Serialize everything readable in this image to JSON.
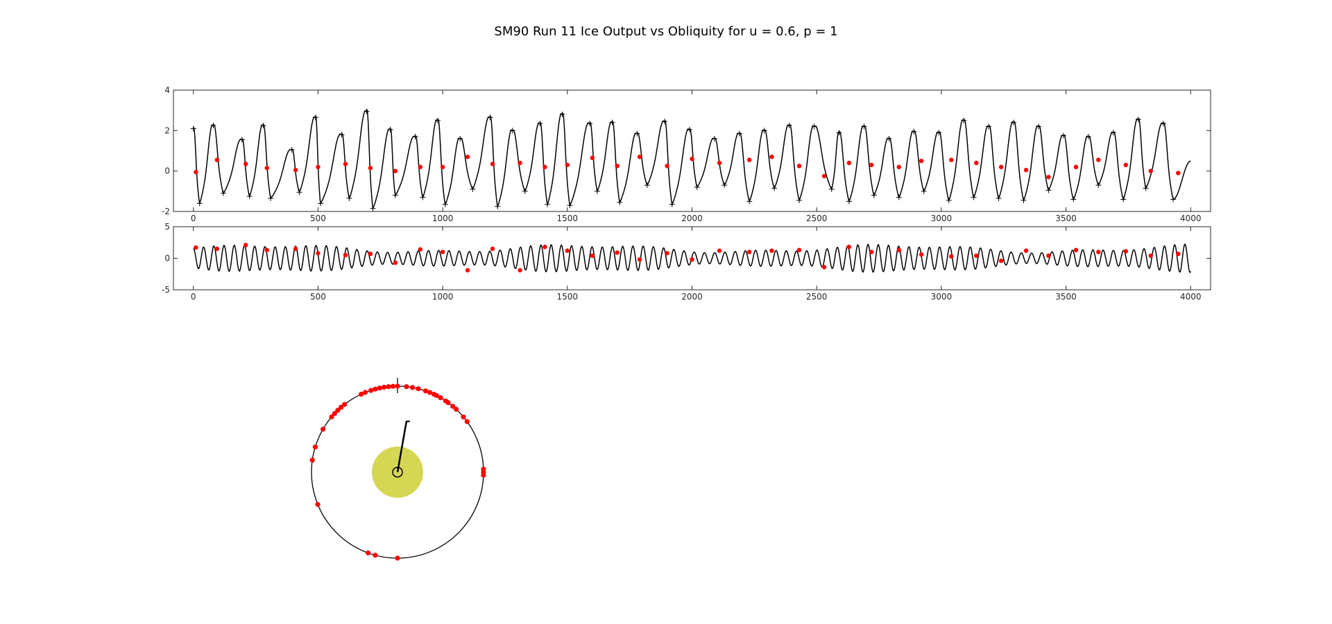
{
  "title": "SM90 Run 11 Ice Output vs Obliquity for u = 0.6, p = 1",
  "chart_data": [
    {
      "type": "line",
      "name": "ice-output",
      "xlim": [
        -80,
        4080
      ],
      "ylim": [
        -2,
        4
      ],
      "xticks": [
        0,
        500,
        1000,
        1500,
        2000,
        2500,
        3000,
        3500,
        4000
      ],
      "yticks": [
        -2,
        0,
        2,
        4
      ],
      "grid": false,
      "series_color": "#000000",
      "marker_color": "#ff0000",
      "markers_red": [
        [
          10,
          -0.05
        ],
        [
          95,
          0.55
        ],
        [
          210,
          0.35
        ],
        [
          295,
          0.15
        ],
        [
          410,
          0.05
        ],
        [
          500,
          0.2
        ],
        [
          610,
          0.35
        ],
        [
          710,
          0.15
        ],
        [
          810,
          0.0
        ],
        [
          910,
          0.2
        ],
        [
          1000,
          0.2
        ],
        [
          1100,
          0.7
        ],
        [
          1200,
          0.35
        ],
        [
          1310,
          0.4
        ],
        [
          1410,
          0.2
        ],
        [
          1500,
          0.3
        ],
        [
          1600,
          0.65
        ],
        [
          1700,
          0.25
        ],
        [
          1790,
          0.7
        ],
        [
          1900,
          0.25
        ],
        [
          2000,
          0.6
        ],
        [
          2110,
          0.4
        ],
        [
          2230,
          0.55
        ],
        [
          2320,
          0.7
        ],
        [
          2430,
          0.25
        ],
        [
          2530,
          -0.25
        ],
        [
          2630,
          0.4
        ],
        [
          2720,
          0.3
        ],
        [
          2830,
          0.2
        ],
        [
          2920,
          0.5
        ],
        [
          3040,
          0.55
        ],
        [
          3140,
          0.4
        ],
        [
          3240,
          0.2
        ],
        [
          3340,
          0.05
        ],
        [
          3430,
          -0.3
        ],
        [
          3540,
          0.2
        ],
        [
          3630,
          0.55
        ],
        [
          3740,
          0.3
        ],
        [
          3840,
          0.0
        ],
        [
          3950,
          -0.1
        ]
      ],
      "markers_plus": [
        [
          0,
          2.1
        ],
        [
          25,
          -1.6
        ],
        [
          80,
          2.25
        ],
        [
          120,
          -1.1
        ],
        [
          195,
          1.55
        ],
        [
          225,
          -1.25
        ],
        [
          280,
          2.25
        ],
        [
          310,
          -1.35
        ],
        [
          395,
          1.05
        ],
        [
          425,
          -1.05
        ],
        [
          490,
          2.65
        ],
        [
          510,
          -1.6
        ],
        [
          595,
          1.8
        ],
        [
          625,
          -1.35
        ],
        [
          695,
          2.95
        ],
        [
          720,
          -1.85
        ],
        [
          790,
          2.05
        ],
        [
          810,
          -1.2
        ],
        [
          890,
          1.7
        ],
        [
          920,
          -1.3
        ],
        [
          980,
          2.5
        ],
        [
          1010,
          -1.65
        ],
        [
          1070,
          1.6
        ],
        [
          1120,
          -0.9
        ],
        [
          1190,
          2.65
        ],
        [
          1220,
          -1.75
        ],
        [
          1280,
          2.0
        ],
        [
          1330,
          -1.0
        ],
        [
          1390,
          2.35
        ],
        [
          1420,
          -1.65
        ],
        [
          1480,
          2.8
        ],
        [
          1510,
          -1.7
        ],
        [
          1590,
          2.35
        ],
        [
          1620,
          -1.0
        ],
        [
          1680,
          2.4
        ],
        [
          1710,
          -1.55
        ],
        [
          1780,
          1.85
        ],
        [
          1820,
          -0.7
        ],
        [
          1890,
          2.45
        ],
        [
          1920,
          -1.65
        ],
        [
          1990,
          2.05
        ],
        [
          2020,
          -0.8
        ],
        [
          2090,
          1.6
        ],
        [
          2130,
          -0.7
        ],
        [
          2190,
          1.85
        ],
        [
          2230,
          -1.5
        ],
        [
          2290,
          2.0
        ],
        [
          2330,
          -0.85
        ],
        [
          2390,
          2.25
        ],
        [
          2430,
          -1.45
        ],
        [
          2490,
          2.2
        ],
        [
          2560,
          -0.9
        ],
        [
          2590,
          1.9
        ],
        [
          2630,
          -1.5
        ],
        [
          2690,
          2.2
        ],
        [
          2730,
          -1.2
        ],
        [
          2790,
          1.6
        ],
        [
          2830,
          -1.3
        ],
        [
          2890,
          1.95
        ],
        [
          2930,
          -1.0
        ],
        [
          2990,
          1.9
        ],
        [
          3030,
          -1.45
        ],
        [
          3090,
          2.5
        ],
        [
          3130,
          -1.3
        ],
        [
          3190,
          2.2
        ],
        [
          3230,
          -1.35
        ],
        [
          3290,
          2.4
        ],
        [
          3330,
          -1.45
        ],
        [
          3390,
          2.2
        ],
        [
          3430,
          -0.95
        ],
        [
          3490,
          1.75
        ],
        [
          3530,
          -1.4
        ],
        [
          3590,
          1.7
        ],
        [
          3630,
          -0.7
        ],
        [
          3690,
          1.9
        ],
        [
          3730,
          -1.4
        ],
        [
          3790,
          2.55
        ],
        [
          3820,
          -0.85
        ],
        [
          3890,
          2.35
        ],
        [
          3930,
          -1.4
        ]
      ]
    },
    {
      "type": "line",
      "name": "obliquity",
      "xlim": [
        -80,
        4080
      ],
      "ylim": [
        -5,
        5
      ],
      "xticks": [
        0,
        500,
        1000,
        1500,
        2000,
        2500,
        3000,
        3500,
        4000
      ],
      "yticks": [
        -5,
        0,
        5
      ],
      "grid": false,
      "series_color": "#000000",
      "marker_color": "#ff0000",
      "markers_red": [
        [
          10,
          1.7
        ],
        [
          95,
          1.5
        ],
        [
          210,
          2.1
        ],
        [
          295,
          1.3
        ],
        [
          410,
          1.5
        ],
        [
          500,
          0.8
        ],
        [
          610,
          0.5
        ],
        [
          710,
          0.7
        ],
        [
          810,
          -0.7
        ],
        [
          910,
          1.4
        ],
        [
          1000,
          1.0
        ],
        [
          1100,
          -1.9
        ],
        [
          1200,
          1.5
        ],
        [
          1310,
          -1.9
        ],
        [
          1410,
          1.8
        ],
        [
          1500,
          1.2
        ],
        [
          1600,
          0.4
        ],
        [
          1700,
          0.9
        ],
        [
          1790,
          -0.2
        ],
        [
          1900,
          0.8
        ],
        [
          2000,
          -0.2
        ],
        [
          2110,
          1.2
        ],
        [
          2230,
          1.0
        ],
        [
          2320,
          1.2
        ],
        [
          2430,
          1.3
        ],
        [
          2530,
          -1.4
        ],
        [
          2630,
          1.8
        ],
        [
          2720,
          1.0
        ],
        [
          2830,
          1.3
        ],
        [
          2920,
          0.6
        ],
        [
          3040,
          0.3
        ],
        [
          3140,
          0.4
        ],
        [
          3240,
          -0.4
        ],
        [
          3340,
          1.2
        ],
        [
          3430,
          0.4
        ],
        [
          3540,
          1.3
        ],
        [
          3630,
          1.0
        ],
        [
          3740,
          1.1
        ],
        [
          3840,
          0.4
        ],
        [
          3950,
          0.7
        ]
      ]
    },
    {
      "type": "scatter",
      "name": "phase-wheel",
      "radius": 1,
      "center_fill": "#d6d655",
      "needle_angle_deg": 80,
      "needle_length": 0.6,
      "phase_angles_deg": [
        90,
        93,
        96,
        99,
        102,
        105,
        108,
        112,
        115,
        128,
        131,
        134,
        137,
        140,
        150,
        163,
        172,
        202,
        250,
        255,
        270,
        36,
        40,
        47,
        50,
        54,
        56,
        60,
        63,
        65,
        68,
        71,
        76,
        80,
        84,
        -2,
        0,
        2
      ]
    }
  ]
}
